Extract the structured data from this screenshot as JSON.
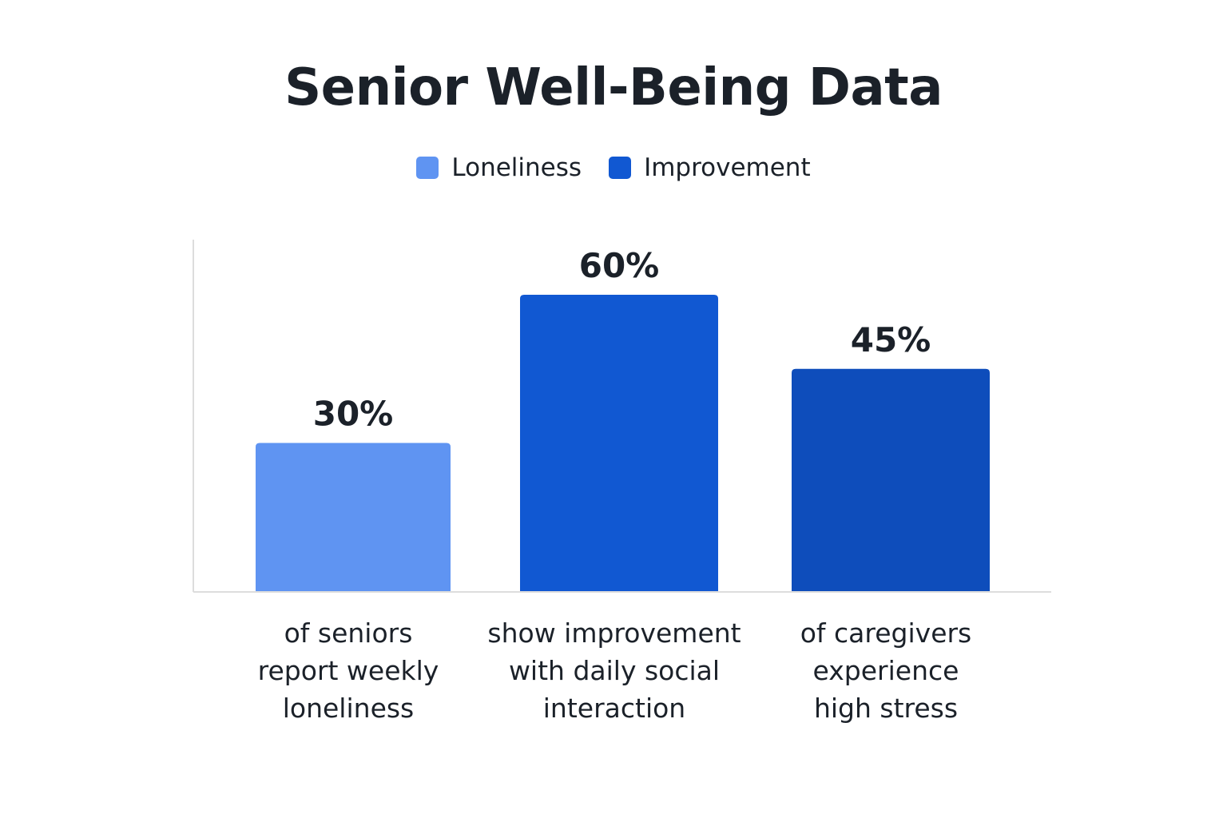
{
  "chart_data": {
    "type": "bar",
    "title": "Senior Well-Being Data",
    "xlabel": "",
    "ylabel": "",
    "ylim": [
      0,
      70
    ],
    "grid": false,
    "legend_position": "top-center",
    "legend": [
      {
        "name": "Loneliness",
        "color": "#5f94f2"
      },
      {
        "name": "Improvement",
        "color": "#1158d2"
      }
    ],
    "categories": [
      [
        "of seniors",
        "report weekly",
        "loneliness"
      ],
      [
        "show improvement",
        "with daily social",
        "interaction"
      ],
      [
        "of caregivers",
        "experience",
        "high stress"
      ]
    ],
    "values": [
      30,
      60,
      45
    ],
    "data_labels": [
      "30%",
      "60%",
      "45%"
    ],
    "bar_colors": [
      "#5f94f2",
      "#1158d2",
      "#0e4dbb"
    ],
    "axis_color": "#dddddd"
  }
}
